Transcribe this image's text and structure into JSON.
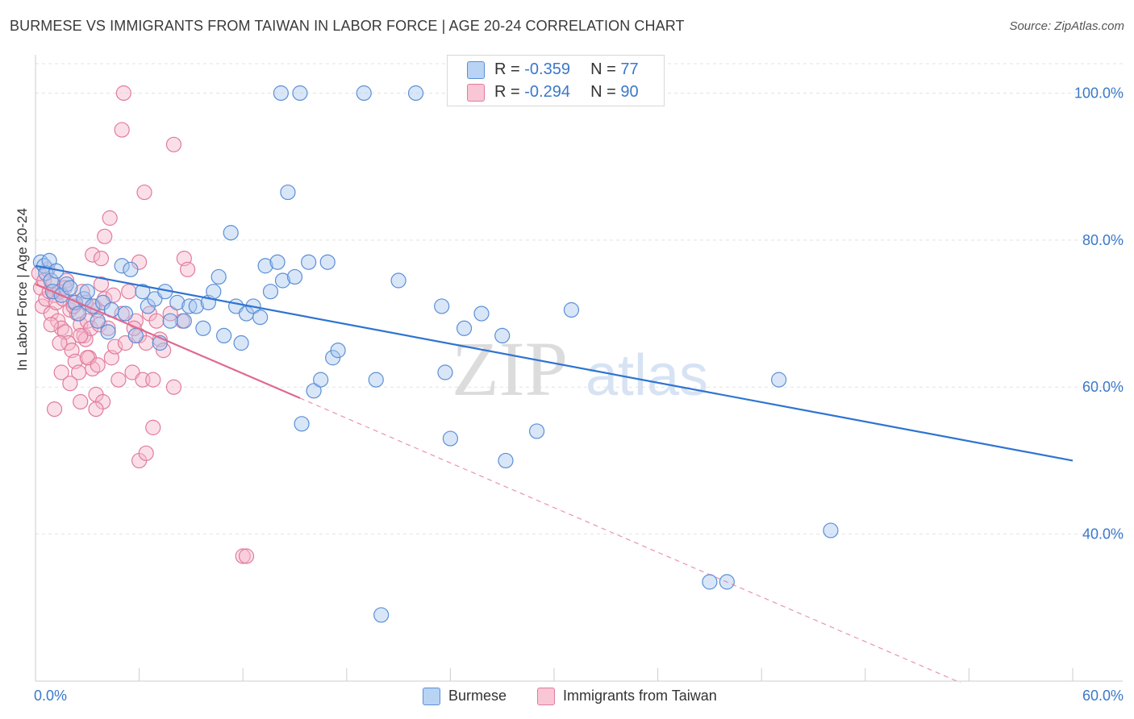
{
  "title": "BURMESE VS IMMIGRANTS FROM TAIWAN IN LABOR FORCE | AGE 20-24 CORRELATION CHART",
  "source": "Source: ZipAtlas.com",
  "watermark": {
    "zip": "ZIP",
    "atlas": "atlas"
  },
  "legend": {
    "burmese": {
      "r_label": "R = ",
      "r_value": "-0.359",
      "n_label": "N = ",
      "n_value": "77"
    },
    "taiwan": {
      "r_label": "R = ",
      "r_value": "-0.294",
      "n_label": "N = ",
      "n_value": "90"
    }
  },
  "colors": {
    "burmese_fill": "#a9c8f0",
    "burmese_stroke": "#5b8fd6",
    "burmese_line": "#2e74d0",
    "taiwan_fill": "#f6b8cb",
    "taiwan_stroke": "#e07c9c",
    "taiwan_line": "#e0688f",
    "tick_label": "#3a78c9"
  },
  "chart_data": {
    "type": "scatter",
    "title": "BURMESE VS IMMIGRANTS FROM TAIWAN IN LABOR FORCE | AGE 20-24 CORRELATION CHART",
    "xlabel": "",
    "ylabel": "In Labor Force | Age 20-24",
    "xlim": [
      0,
      60
    ],
    "ylim": [
      20,
      104
    ],
    "x_tick_labels": [
      {
        "value": 0,
        "label": "0.0%"
      },
      {
        "value": 60,
        "label": "60.0%"
      }
    ],
    "y_tick_labels": [
      {
        "value": 40,
        "label": "40.0%"
      },
      {
        "value": 60,
        "label": "60.0%"
      },
      {
        "value": 80,
        "label": "80.0%"
      },
      {
        "value": 100,
        "label": "100.0%"
      }
    ],
    "grid": true,
    "series": [
      {
        "name": "Burmese",
        "r": -0.359,
        "n": 77,
        "trend": {
          "x": [
            0,
            60
          ],
          "y": [
            76.5,
            50.0
          ]
        },
        "points": [
          [
            0.3,
            77.0
          ],
          [
            0.5,
            76.5
          ],
          [
            0.6,
            75.5
          ],
          [
            0.8,
            77.2
          ],
          [
            0.9,
            74.5
          ],
          [
            1.0,
            73.0
          ],
          [
            1.2,
            75.8
          ],
          [
            1.5,
            72.5
          ],
          [
            1.8,
            74.0
          ],
          [
            2.0,
            73.5
          ],
          [
            2.3,
            71.5
          ],
          [
            2.5,
            70.0
          ],
          [
            2.8,
            72.0
          ],
          [
            3.0,
            73.0
          ],
          [
            3.3,
            71.0
          ],
          [
            3.6,
            69.0
          ],
          [
            3.9,
            71.5
          ],
          [
            4.2,
            67.5
          ],
          [
            4.4,
            70.5
          ],
          [
            5.0,
            76.5
          ],
          [
            5.2,
            70.0
          ],
          [
            5.5,
            76.0
          ],
          [
            5.8,
            67.0
          ],
          [
            6.2,
            73.0
          ],
          [
            6.5,
            71.0
          ],
          [
            6.9,
            72.0
          ],
          [
            7.2,
            66.0
          ],
          [
            7.5,
            73.0
          ],
          [
            7.8,
            69.0
          ],
          [
            8.2,
            71.5
          ],
          [
            8.6,
            69.0
          ],
          [
            8.9,
            71.0
          ],
          [
            9.3,
            71.0
          ],
          [
            9.7,
            68.0
          ],
          [
            10.0,
            71.5
          ],
          [
            10.3,
            73.0
          ],
          [
            10.6,
            75.0
          ],
          [
            10.9,
            67.0
          ],
          [
            11.3,
            81.0
          ],
          [
            11.6,
            71.0
          ],
          [
            11.9,
            66.0
          ],
          [
            12.2,
            70.0
          ],
          [
            12.6,
            71.0
          ],
          [
            13.0,
            69.5
          ],
          [
            13.3,
            76.5
          ],
          [
            13.6,
            73.0
          ],
          [
            14.0,
            77.0
          ],
          [
            14.3,
            74.5
          ],
          [
            14.6,
            86.5
          ],
          [
            15.0,
            75.0
          ],
          [
            15.4,
            55.0
          ],
          [
            15.8,
            77.0
          ],
          [
            16.1,
            59.5
          ],
          [
            16.5,
            61.0
          ],
          [
            16.9,
            77.0
          ],
          [
            17.2,
            64.0
          ],
          [
            17.5,
            65.0
          ],
          [
            14.2,
            100.0
          ],
          [
            15.3,
            100.0
          ],
          [
            19.0,
            100.0
          ],
          [
            22.0,
            100.0
          ],
          [
            19.7,
            61.0
          ],
          [
            21.0,
            74.5
          ],
          [
            23.5,
            71.0
          ],
          [
            23.7,
            62.0
          ],
          [
            24.0,
            53.0
          ],
          [
            24.8,
            68.0
          ],
          [
            25.8,
            70.0
          ],
          [
            27.0,
            67.0
          ],
          [
            27.2,
            50.0
          ],
          [
            29.0,
            54.0
          ],
          [
            31.0,
            70.5
          ],
          [
            43.0,
            61.0
          ],
          [
            46.0,
            40.5
          ],
          [
            20.0,
            29.0
          ],
          [
            39.0,
            33.5
          ],
          [
            40.0,
            33.5
          ]
        ]
      },
      {
        "name": "Immigrants from Taiwan",
        "r": -0.294,
        "n": 90,
        "trend": {
          "x": [
            0,
            15.3
          ],
          "y": [
            74.0,
            58.5
          ]
        },
        "trend_dashed": {
          "x": [
            15.3,
            53.5
          ],
          "y": [
            58.5,
            19.8
          ]
        },
        "points": [
          [
            0.2,
            75.5
          ],
          [
            0.3,
            73.5
          ],
          [
            0.4,
            71.0
          ],
          [
            0.5,
            74.5
          ],
          [
            0.6,
            72.0
          ],
          [
            0.7,
            76.0
          ],
          [
            0.8,
            73.0
          ],
          [
            0.9,
            70.0
          ],
          [
            1.0,
            74.0
          ],
          [
            1.1,
            72.5
          ],
          [
            1.2,
            71.5
          ],
          [
            1.3,
            69.0
          ],
          [
            1.4,
            73.0
          ],
          [
            1.5,
            68.0
          ],
          [
            1.6,
            72.0
          ],
          [
            1.7,
            67.5
          ],
          [
            1.8,
            74.5
          ],
          [
            1.9,
            66.0
          ],
          [
            2.0,
            70.5
          ],
          [
            2.1,
            65.0
          ],
          [
            2.2,
            71.5
          ],
          [
            2.3,
            63.5
          ],
          [
            2.4,
            70.0
          ],
          [
            2.5,
            62.0
          ],
          [
            2.6,
            68.5
          ],
          [
            2.7,
            73.0
          ],
          [
            2.8,
            67.0
          ],
          [
            2.9,
            66.5
          ],
          [
            3.0,
            69.0
          ],
          [
            3.1,
            64.0
          ],
          [
            3.2,
            68.0
          ],
          [
            3.3,
            62.5
          ],
          [
            3.4,
            71.0
          ],
          [
            3.5,
            59.0
          ],
          [
            3.6,
            70.5
          ],
          [
            3.7,
            68.5
          ],
          [
            3.8,
            74.0
          ],
          [
            3.9,
            58.0
          ],
          [
            4.0,
            72.0
          ],
          [
            4.2,
            68.0
          ],
          [
            4.4,
            64.0
          ],
          [
            4.6,
            65.5
          ],
          [
            4.8,
            61.0
          ],
          [
            5.0,
            70.0
          ],
          [
            5.2,
            66.0
          ],
          [
            5.4,
            73.0
          ],
          [
            5.6,
            62.0
          ],
          [
            5.8,
            69.0
          ],
          [
            6.0,
            67.0
          ],
          [
            6.2,
            61.0
          ],
          [
            6.4,
            66.0
          ],
          [
            6.6,
            70.0
          ],
          [
            6.8,
            61.0
          ],
          [
            7.0,
            69.0
          ],
          [
            7.2,
            66.5
          ],
          [
            7.4,
            65.0
          ],
          [
            1.1,
            57.0
          ],
          [
            1.5,
            62.0
          ],
          [
            2.0,
            60.5
          ],
          [
            2.6,
            58.0
          ],
          [
            3.0,
            64.0
          ],
          [
            3.5,
            57.0
          ],
          [
            3.3,
            78.0
          ],
          [
            3.8,
            77.5
          ],
          [
            4.0,
            80.5
          ],
          [
            4.3,
            83.0
          ],
          [
            5.0,
            95.0
          ],
          [
            5.1,
            100.0
          ],
          [
            6.3,
            86.5
          ],
          [
            6.0,
            77.0
          ],
          [
            8.0,
            93.0
          ],
          [
            8.6,
            77.5
          ],
          [
            8.8,
            76.0
          ],
          [
            6.0,
            50.0
          ],
          [
            6.4,
            51.0
          ],
          [
            6.8,
            54.5
          ],
          [
            8.0,
            60.0
          ],
          [
            12.0,
            37.0
          ],
          [
            12.2,
            37.0
          ],
          [
            2.2,
            71.0
          ],
          [
            1.4,
            66.0
          ],
          [
            2.6,
            67.0
          ],
          [
            0.9,
            68.5
          ],
          [
            1.7,
            73.5
          ],
          [
            2.9,
            71.5
          ],
          [
            3.6,
            63.0
          ],
          [
            4.5,
            72.5
          ],
          [
            5.7,
            68.0
          ],
          [
            7.8,
            70.0
          ],
          [
            8.5,
            69.0
          ]
        ]
      }
    ]
  }
}
